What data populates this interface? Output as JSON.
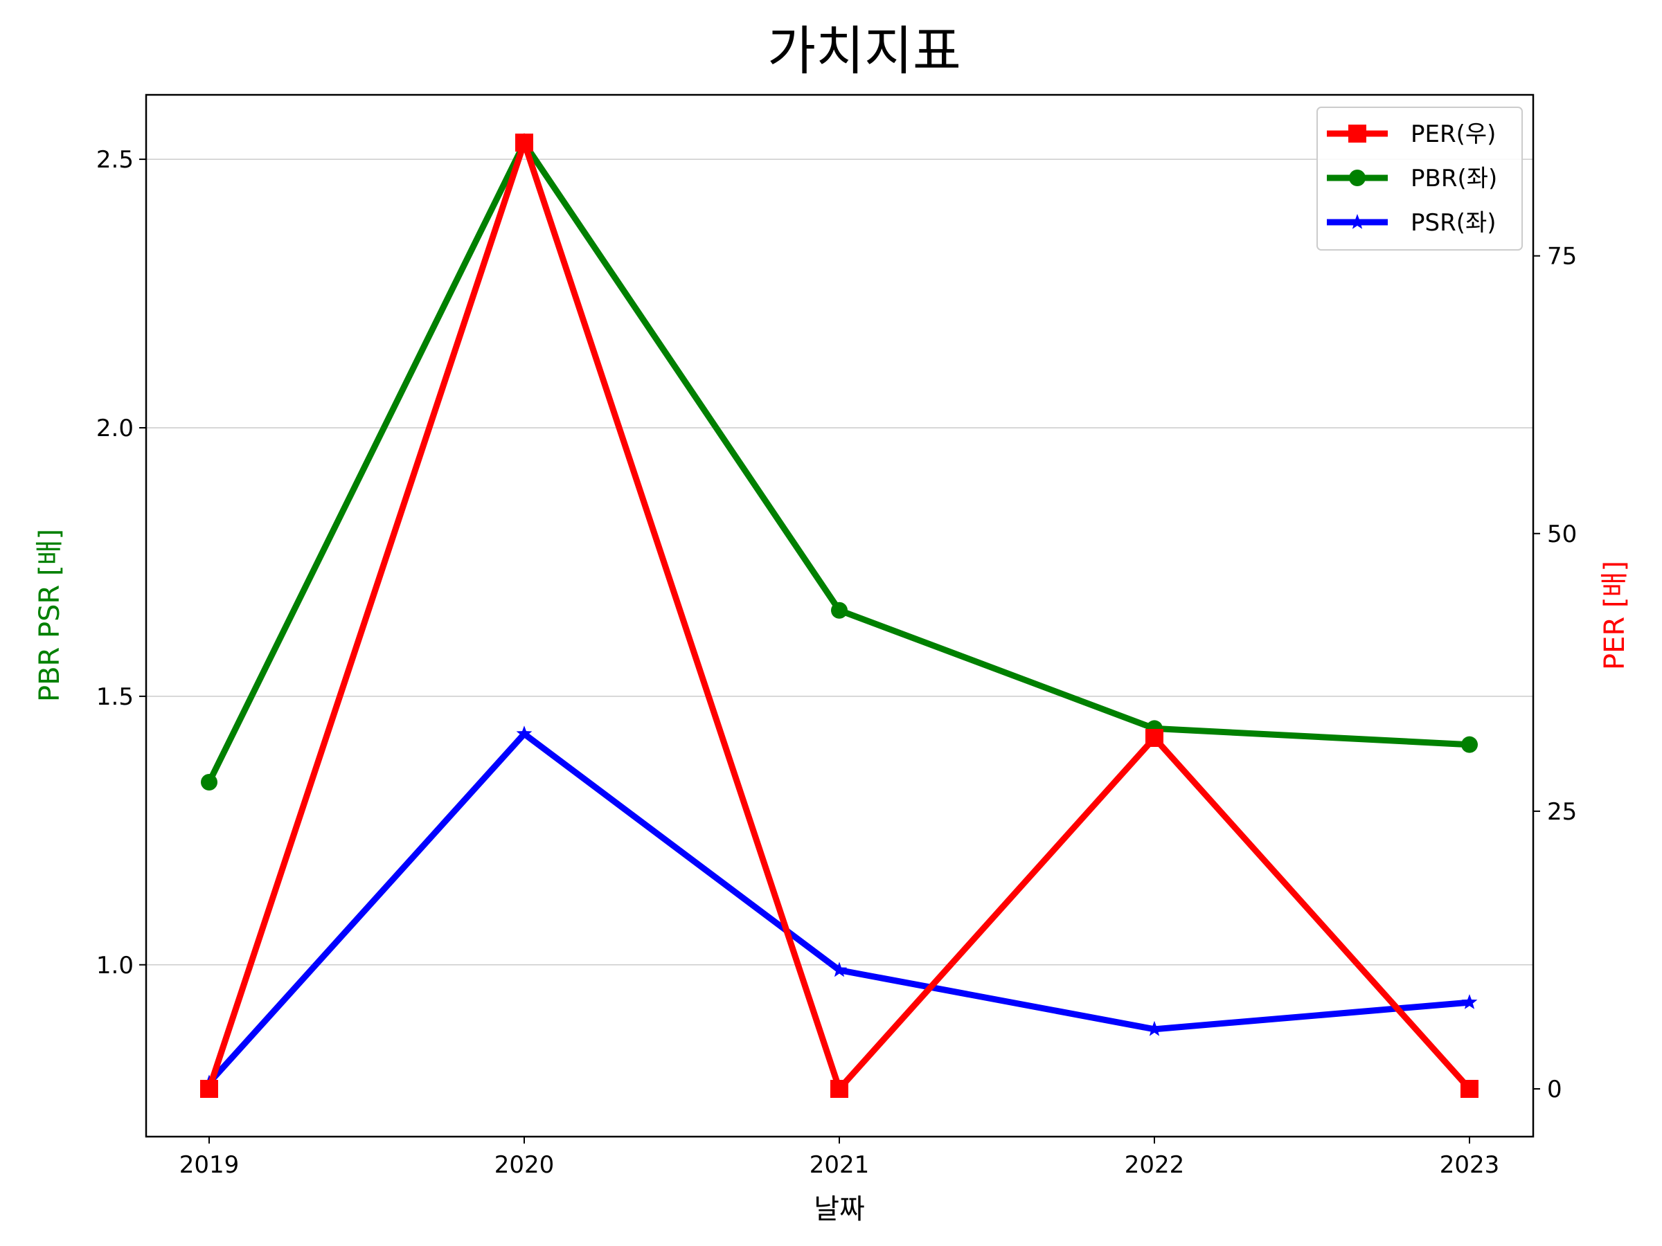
{
  "chart_data": {
    "type": "line",
    "title": "가치지표",
    "xlabel": "날짜",
    "ylabel_left": "PBR PSR [배]",
    "ylabel_right": "PER [배]",
    "categories": [
      "2019",
      "2020",
      "2021",
      "2022",
      "2023"
    ],
    "left_axis": {
      "ylim": [
        0.68,
        2.62
      ],
      "ticks": [
        1.0,
        1.5,
        2.0,
        2.5
      ],
      "tick_labels": [
        "1.0",
        "1.5",
        "2.0",
        "2.5"
      ]
    },
    "right_axis": {
      "ylim": [
        -4.3,
        89.5
      ],
      "ticks": [
        0,
        25,
        50,
        75
      ],
      "tick_labels": [
        "0",
        "25",
        "50",
        "75"
      ]
    },
    "grid": "horizontal (left axis)",
    "legend_position": "top-right",
    "series": [
      {
        "name": "PER(우)",
        "axis": "right",
        "color": "#ff0000",
        "marker": "square",
        "values": [
          0,
          85.2,
          0,
          31.6,
          0
        ]
      },
      {
        "name": "PBR(좌)",
        "axis": "left",
        "color": "#008000",
        "marker": "circle",
        "values": [
          1.34,
          2.53,
          1.66,
          1.44,
          1.41
        ]
      },
      {
        "name": "PSR(좌)",
        "axis": "left",
        "color": "#0000ff",
        "marker": "star",
        "values": [
          0.78,
          1.43,
          0.99,
          0.88,
          0.93
        ]
      }
    ]
  }
}
